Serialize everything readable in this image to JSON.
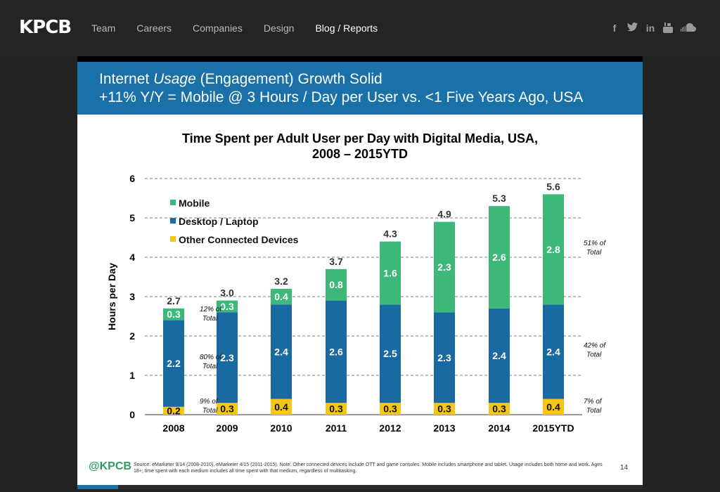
{
  "site": {
    "logo": "KPCB",
    "nav": [
      "Team",
      "Careers",
      "Companies",
      "Design",
      "Blog / Reports"
    ],
    "social_icons": [
      "facebook-icon",
      "twitter-icon",
      "linkedin-icon",
      "youtube-icon",
      "soundcloud-icon"
    ]
  },
  "slide": {
    "header_line1_pre": "Internet ",
    "header_line1_em": "Usage",
    "header_line1_post": " (Engagement) Growth Solid",
    "header_line2": "+11% Y/Y = Mobile @ 3 Hours / Day per User vs. <1  Five Years Ago, USA",
    "footer_logo": "@KPCB",
    "source": "Source: eMarketer 9/14 (2008-2010), eMarketer 4/15 (2011-2015). Note: Other connected devices include OTT and game consoles. Mobile includes smartphone and tablet. Usage includes both home and work. Ages 18+; time spent with each medium includes all time spent with that medium, regardless of multitasking.",
    "page_number": "14"
  },
  "colors": {
    "mobile": "#3cb878",
    "desktop": "#1a6aa2",
    "other": "#f5c518",
    "banner": "#1a71a7"
  },
  "chart_data": {
    "type": "bar",
    "title_line1": "Time Spent per Adult User per Day with Digital Media, USA,",
    "title_line2": "2008 – 2015YTD",
    "xlabel": "",
    "ylabel": "Hours per Day",
    "ylim": [
      0,
      6
    ],
    "yticks": [
      0,
      1,
      2,
      3,
      4,
      5,
      6
    ],
    "grid": true,
    "legend_position": "top-left",
    "categories": [
      "2008",
      "2009",
      "2010",
      "2011",
      "2012",
      "2013",
      "2014",
      "2015YTD"
    ],
    "series": [
      {
        "name": "Other Connected Devices",
        "values": [
          0.2,
          0.3,
          0.4,
          0.3,
          0.3,
          0.3,
          0.3,
          0.4
        ]
      },
      {
        "name": "Desktop / Laptop",
        "values": [
          2.2,
          2.3,
          2.4,
          2.6,
          2.5,
          2.3,
          2.4,
          2.4
        ]
      },
      {
        "name": "Mobile",
        "values": [
          0.3,
          0.3,
          0.4,
          0.8,
          1.6,
          2.3,
          2.6,
          2.8
        ]
      }
    ],
    "legend_order": [
      "Mobile",
      "Desktop / Laptop",
      "Other Connected Devices"
    ],
    "totals": [
      "2.7",
      "3.0",
      "3.2",
      "3.7",
      "4.3",
      "4.9",
      "5.3",
      "5.6"
    ],
    "annotations": [
      {
        "label": "12% of",
        "label2": "Total",
        "year": "2008",
        "series": "Mobile"
      },
      {
        "label": "80% of",
        "label2": "Total",
        "year": "2008",
        "series": "Desktop / Laptop"
      },
      {
        "label": "9% of",
        "label2": "Total",
        "year": "2008",
        "series": "Other Connected Devices"
      },
      {
        "label": "51% of",
        "label2": "Total",
        "year": "2015YTD",
        "series": "Mobile"
      },
      {
        "label": "42% of",
        "label2": "Total",
        "year": "2015YTD",
        "series": "Desktop / Laptop"
      },
      {
        "label": "7% of",
        "label2": "Total",
        "year": "2015YTD",
        "series": "Other Connected Devices"
      }
    ]
  }
}
